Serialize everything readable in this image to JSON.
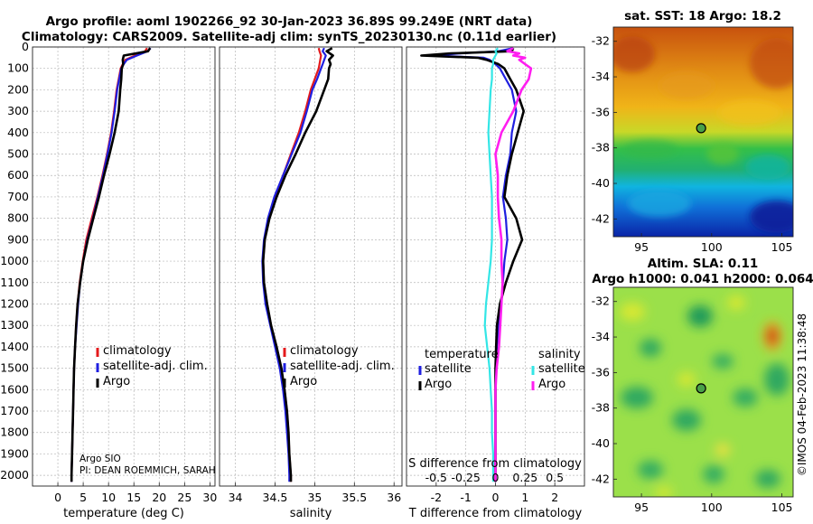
{
  "header": {
    "title_line1": "Argo profile: aoml 1902266_92 30-Jan-2023 36.89S 99.249E (NRT data)",
    "title_line2": "Climatology: CARS2009. Satellite-adj clim: synTS_20230130.nc (0.11d earlier)"
  },
  "chart_data": [
    {
      "type": "line",
      "name": "temperature-profile",
      "xlabel": "temperature (deg C)",
      "ylabel": "",
      "xlim": [
        -5,
        31
      ],
      "ylim": [
        2050,
        0
      ],
      "xticks": [
        0,
        5,
        10,
        15,
        20,
        25,
        30
      ],
      "yticks": [
        0,
        100,
        200,
        300,
        400,
        500,
        600,
        700,
        800,
        900,
        1000,
        1100,
        1200,
        1300,
        1400,
        1500,
        1600,
        1700,
        1800,
        1900,
        2000
      ],
      "depth": [
        5,
        20,
        40,
        60,
        80,
        100,
        150,
        200,
        300,
        400,
        500,
        600,
        700,
        800,
        900,
        1000,
        1100,
        1200,
        1300,
        1400,
        1500,
        1600,
        1700,
        1800,
        1900,
        2000,
        2030
      ],
      "series": [
        {
          "name": "climatology",
          "color": "#e41a1c",
          "values": [
            17.6,
            17.2,
            15.2,
            13.3,
            12.8,
            12.4,
            12.0,
            11.6,
            11.1,
            10.5,
            9.7,
            8.8,
            7.8,
            6.7,
            5.6,
            4.9,
            4.3,
            3.9,
            3.6,
            3.4,
            3.2,
            3.1,
            3.0,
            2.9,
            2.8,
            2.7,
            2.7
          ]
        },
        {
          "name": "satellite-adj. clim.",
          "color": "#1f1fe0",
          "values": [
            18.3,
            17.7,
            15.6,
            13.6,
            13.0,
            12.5,
            12.1,
            11.7,
            11.2,
            10.6,
            9.8,
            8.9,
            7.9,
            6.9,
            5.8,
            5.0,
            4.4,
            4.0,
            3.7,
            3.4,
            3.2,
            3.1,
            3.0,
            2.9,
            2.8,
            2.7,
            2.7
          ]
        },
        {
          "name": "Argo",
          "color": "#000000",
          "values": [
            18.2,
            17.8,
            13.0,
            12.8,
            12.9,
            12.6,
            12.5,
            12.3,
            12.0,
            11.2,
            10.2,
            9.1,
            8.1,
            7.0,
            5.9,
            5.0,
            4.4,
            3.9,
            3.6,
            3.4,
            3.2,
            3.1,
            3.0,
            2.9,
            2.8,
            2.7,
            2.7
          ]
        }
      ],
      "legend": [
        "climatology",
        "satellite-adj. clim.",
        "Argo"
      ],
      "legend_position": "lower-right",
      "annotation_line1": "Argo SIO",
      "annotation_line2": "PI: DEAN ROEMMICH, SARAH"
    },
    {
      "type": "line",
      "name": "salinity-profile",
      "xlabel": "salinity",
      "xlim": [
        33.8,
        36.1
      ],
      "ylim": [
        2050,
        0
      ],
      "xticks": [
        34,
        34.5,
        35,
        35.5,
        36
      ],
      "depth": [
        5,
        20,
        40,
        60,
        80,
        100,
        150,
        200,
        300,
        400,
        500,
        600,
        700,
        800,
        900,
        1000,
        1100,
        1200,
        1300,
        1400,
        1500,
        1600,
        1700,
        1800,
        1900,
        2000,
        2030
      ],
      "series": [
        {
          "name": "climatology",
          "color": "#e41a1c",
          "values": [
            35.05,
            35.06,
            35.08,
            35.07,
            35.06,
            35.05,
            35.0,
            34.95,
            34.88,
            34.8,
            34.7,
            34.6,
            34.5,
            34.42,
            34.37,
            34.35,
            34.36,
            34.4,
            34.45,
            34.52,
            34.58,
            34.62,
            34.65,
            34.67,
            34.68,
            34.7,
            34.7
          ]
        },
        {
          "name": "satellite-adj. clim.",
          "color": "#1f1fe0",
          "values": [
            35.12,
            35.1,
            35.14,
            35.12,
            35.1,
            35.08,
            35.03,
            34.97,
            34.9,
            34.82,
            34.71,
            34.6,
            34.49,
            34.41,
            34.36,
            34.34,
            34.35,
            34.38,
            34.44,
            34.5,
            34.56,
            34.6,
            34.63,
            34.65,
            34.67,
            34.68,
            34.68
          ]
        },
        {
          "name": "Argo",
          "color": "#000000",
          "values": [
            35.22,
            35.15,
            35.23,
            35.18,
            35.2,
            35.18,
            35.17,
            35.12,
            35.02,
            34.88,
            34.76,
            34.63,
            34.52,
            34.43,
            34.37,
            34.35,
            34.36,
            34.4,
            34.45,
            34.52,
            34.58,
            34.62,
            34.65,
            34.67,
            34.68,
            34.7,
            34.7
          ]
        }
      ],
      "legend": [
        "climatology",
        "satellite-adj. clim.",
        "Argo"
      ],
      "legend_position": "lower-right"
    },
    {
      "type": "line",
      "name": "difference-profile",
      "xlabel": "T difference from climatology",
      "xlabel_top": "S difference from climatology",
      "xlim": [
        -3,
        3
      ],
      "ylim": [
        2050,
        0
      ],
      "xticks": [
        -2,
        -1,
        0,
        1,
        2
      ],
      "xticks_top": [
        -0.5,
        -0.25,
        0,
        0.25,
        0.5
      ],
      "depth": [
        5,
        20,
        30,
        40,
        50,
        60,
        80,
        100,
        150,
        200,
        300,
        400,
        500,
        600,
        700,
        800,
        900,
        1000,
        1100,
        1200,
        1300,
        1400,
        1500,
        1600,
        1700,
        1800,
        1900,
        2000,
        2030
      ],
      "series": [
        {
          "name": "temperature satellite",
          "color": "#1f1fe0",
          "values": [
            0.6,
            0.1,
            -1.2,
            -2.1,
            -0.4,
            -0.2,
            0.0,
            0.15,
            0.35,
            0.55,
            0.7,
            0.55,
            0.5,
            0.35,
            0.25,
            0.35,
            0.4,
            0.3,
            0.25,
            0.2,
            0.1,
            0.05,
            0.0,
            0.0,
            0.0,
            0.0,
            0.0,
            0.0,
            0.0
          ]
        },
        {
          "name": "temperature Argo",
          "color": "#000000",
          "values": [
            0.6,
            0.55,
            -1.5,
            -2.5,
            -0.6,
            -0.3,
            0.1,
            0.3,
            0.5,
            0.7,
            0.95,
            0.75,
            0.55,
            0.4,
            0.3,
            0.7,
            0.9,
            0.6,
            0.35,
            0.15,
            0.05,
            0.02,
            0.0,
            0.0,
            0.0,
            0.0,
            0.0,
            0.0,
            0.0
          ]
        },
        {
          "name": "salinity satellite",
          "color": "#33e6e6",
          "values": [
            0.02,
            0.0,
            0.01,
            0.0,
            -0.01,
            -0.02,
            -0.02,
            -0.03,
            -0.03,
            -0.04,
            -0.05,
            -0.06,
            -0.05,
            -0.04,
            -0.03,
            -0.03,
            -0.03,
            -0.04,
            -0.06,
            -0.08,
            -0.09,
            -0.07,
            -0.05,
            -0.04,
            -0.03,
            -0.03,
            -0.02,
            -0.02,
            -0.02
          ]
        },
        {
          "name": "salinity Argo",
          "color": "#ff1ef0",
          "values": [
            0.15,
            0.1,
            0.2,
            0.15,
            0.25,
            0.2,
            0.25,
            0.3,
            0.28,
            0.22,
            0.15,
            0.05,
            0.0,
            0.02,
            0.02,
            0.03,
            0.05,
            0.05,
            0.06,
            0.05,
            0.04,
            0.03,
            0.01,
            0.0,
            0.0,
            0.0,
            0.0,
            0.0,
            0.0
          ]
        }
      ],
      "legend_temperature_title": "temperature",
      "legend_salinity_title": "salinity",
      "legend_temperature": [
        "satellite",
        "Argo"
      ],
      "legend_salinity": [
        "satellite",
        "Argo"
      ],
      "legend_position": "lower-middle"
    },
    {
      "type": "heatmap",
      "name": "sst-map",
      "title": "sat. SST: 18 Argo: 18.2",
      "xlim": [
        93,
        105.8
      ],
      "ylim": [
        -43,
        -31.2
      ],
      "xticks": [
        95,
        100,
        105
      ],
      "yticks": [
        -32,
        -34,
        -36,
        -38,
        -40,
        -42
      ],
      "marker": {
        "lon": 99.249,
        "lat": -36.89
      }
    },
    {
      "type": "heatmap",
      "name": "sla-map",
      "title_line1": "Altim. SLA: 0.11",
      "title_line2": "Argo h1000: 0.041 h2000: 0.064",
      "xlim": [
        93,
        105.8
      ],
      "ylim": [
        -43,
        -31.2
      ],
      "xticks": [
        95,
        100,
        105
      ],
      "yticks": [
        -32,
        -34,
        -36,
        -38,
        -40,
        -42
      ],
      "marker": {
        "lon": 99.249,
        "lat": -36.89
      }
    }
  ],
  "footer": {
    "copyright": "©IMOS 04-Feb-2023 11:38:48"
  }
}
